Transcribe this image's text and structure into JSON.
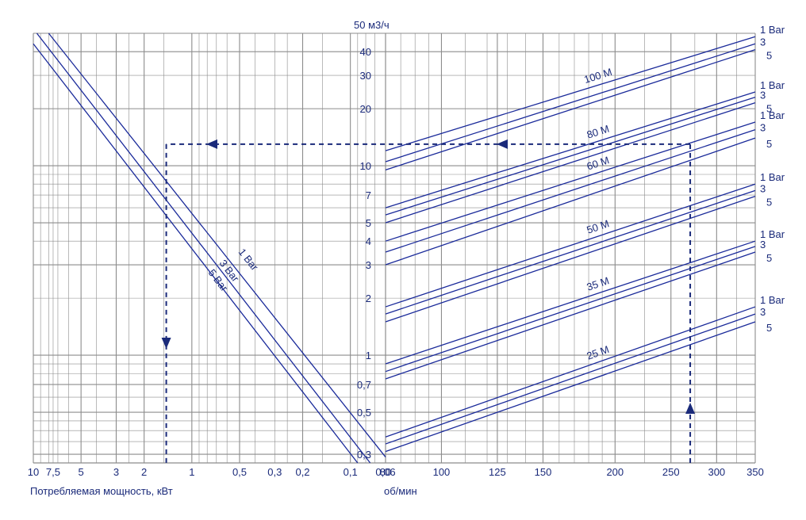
{
  "chart_data": [
    {
      "type": "line",
      "title": "",
      "xlabel": "Потребляемая мощность, кВт",
      "ylabel": "50 м3/ч",
      "x_scale": "log",
      "x_reversed": true,
      "y_scale": "log",
      "xlim": [
        10,
        0.06
      ],
      "ylim": [
        0.27,
        50
      ],
      "x_ticks": [
        "10",
        "7,5",
        "5",
        "3",
        "2",
        "1",
        "0,5",
        "0,3",
        "0,2",
        "0,1",
        "0,06"
      ],
      "series": [
        {
          "name": "1 Bar",
          "label": "1 Bar",
          "x": [
            8.0,
            0.06
          ],
          "y": [
            50,
            0.29
          ]
        },
        {
          "name": "3 Bar",
          "label": "3 Bar",
          "x": [
            9.5,
            0.075
          ],
          "y": [
            50,
            0.27
          ]
        },
        {
          "name": "5 Bar",
          "label": "5 Bar",
          "x": [
            10,
            0.09
          ],
          "y": [
            44,
            0.27
          ]
        }
      ],
      "annotation": {
        "power_kW": 1.45,
        "flow_m3h": 13
      }
    },
    {
      "type": "line",
      "title": "",
      "xlabel": "об/мин",
      "ylabel": "50 м3/ч",
      "x_scale": "log",
      "y_scale": "log",
      "xlim": [
        80,
        350
      ],
      "ylim": [
        0.27,
        50
      ],
      "x_ticks": [
        "80",
        "100",
        "125",
        "150",
        "200",
        "250",
        "300",
        "350"
      ],
      "y_ticks": [
        "0,3",
        "0,5",
        "0,7",
        "1",
        "2",
        "3",
        "4",
        "5",
        "7",
        "10",
        "20",
        "30",
        "40"
      ],
      "pressure_labels": [
        "1 Bar",
        "3",
        "5"
      ],
      "groups": [
        {
          "name": "100 M",
          "series": [
            {
              "bar": "1",
              "x": [
                80,
                350
              ],
              "y": [
                12.0,
                48.0
              ]
            },
            {
              "bar": "3",
              "x": [
                80,
                350
              ],
              "y": [
                10.5,
                44.0
              ]
            },
            {
              "bar": "5",
              "x": [
                80,
                350
              ],
              "y": [
                9.5,
                41.0
              ]
            }
          ]
        },
        {
          "name": "80 M",
          "series": [
            {
              "bar": "1",
              "x": [
                80,
                350
              ],
              "y": [
                6.0,
                24.5
              ]
            },
            {
              "bar": "3",
              "x": [
                80,
                350
              ],
              "y": [
                5.5,
                23.0
              ]
            },
            {
              "bar": "5",
              "x": [
                80,
                350
              ],
              "y": [
                5.0,
                21.5
              ]
            }
          ]
        },
        {
          "name": "60 M",
          "series": [
            {
              "bar": "1",
              "x": [
                80,
                350
              ],
              "y": [
                4.0,
                17.0
              ]
            },
            {
              "bar": "3",
              "x": [
                80,
                350
              ],
              "y": [
                3.5,
                15.5
              ]
            },
            {
              "bar": "5",
              "x": [
                80,
                350
              ],
              "y": [
                3.0,
                14.0
              ]
            }
          ]
        },
        {
          "name": "50 M",
          "series": [
            {
              "bar": "1",
              "x": [
                80,
                350
              ],
              "y": [
                1.8,
                8.0
              ]
            },
            {
              "bar": "3",
              "x": [
                80,
                350
              ],
              "y": [
                1.65,
                7.4
              ]
            },
            {
              "bar": "5",
              "x": [
                80,
                350
              ],
              "y": [
                1.5,
                6.9
              ]
            }
          ]
        },
        {
          "name": "35 M",
          "series": [
            {
              "bar": "1",
              "x": [
                80,
                350
              ],
              "y": [
                0.9,
                4.0
              ]
            },
            {
              "bar": "3",
              "x": [
                80,
                350
              ],
              "y": [
                0.82,
                3.75
              ]
            },
            {
              "bar": "5",
              "x": [
                80,
                350
              ],
              "y": [
                0.75,
                3.5
              ]
            }
          ]
        },
        {
          "name": "25 M",
          "series": [
            {
              "bar": "1",
              "x": [
                80,
                350
              ],
              "y": [
                0.37,
                1.8
              ]
            },
            {
              "bar": "3",
              "x": [
                80,
                350
              ],
              "y": [
                0.34,
                1.65
              ]
            },
            {
              "bar": "5",
              "x": [
                80,
                350
              ],
              "y": [
                0.31,
                1.5
              ]
            }
          ]
        }
      ],
      "annotation": {
        "rpm": 270,
        "flow_m3h": 13
      }
    }
  ],
  "colors": {
    "curve": "#1a2a9a",
    "grid": "#8c8c8c",
    "text": "#1a2a7a",
    "guide": "#1a2a7a"
  }
}
